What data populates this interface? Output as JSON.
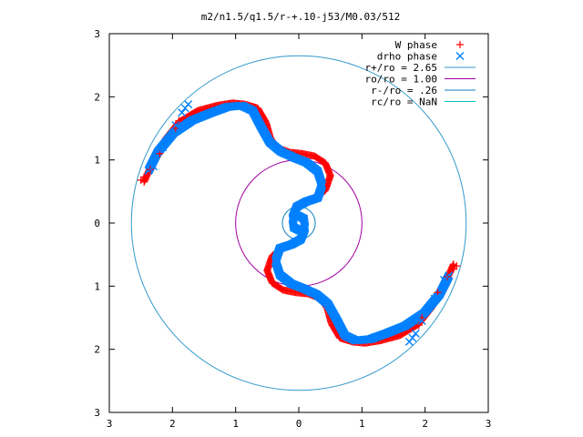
{
  "chart_data": {
    "type": "scatter",
    "title": "m2/n1.5/q1.5/r-+.10-j53/M0.03/512",
    "xlabel": "",
    "ylabel": "",
    "xlim": [
      -3,
      3
    ],
    "ylim": [
      -3,
      3
    ],
    "x_tick_labels": [
      "3",
      "2",
      "1",
      "0",
      "1",
      "2",
      "3"
    ],
    "y_tick_labels": [
      "3",
      "2",
      "1",
      "0",
      "1",
      "2",
      "3"
    ],
    "grid": false,
    "legend_position": "top-right",
    "series": [
      {
        "name": "W phase",
        "kind": "points",
        "marker": "plus",
        "color": "#ff0000"
      },
      {
        "name": "drho phase",
        "kind": "points",
        "marker": "cross",
        "color": "#0080ff"
      },
      {
        "name": "r+/ro = 2.65",
        "kind": "circle",
        "r": 2.65,
        "color": "#3399cc"
      },
      {
        "name": "ro/ro = 1.00",
        "kind": "circle",
        "r": 1.0,
        "color": "#a000a0"
      },
      {
        "name": "r-/ro = .26",
        "kind": "circle",
        "r": 0.26,
        "color": "#1080c0"
      },
      {
        "name": "rc/ro = NaN",
        "kind": "circle",
        "r": null,
        "color": "#00c0c0"
      }
    ],
    "arm_paths": {
      "W_phase": [
        [
          -2.45,
          0.65
        ],
        [
          -2.3,
          1.0
        ],
        [
          -2.1,
          1.35
        ],
        [
          -1.9,
          1.6
        ],
        [
          -1.6,
          1.78
        ],
        [
          -1.3,
          1.86
        ],
        [
          -1.05,
          1.9
        ],
        [
          -0.85,
          1.88
        ],
        [
          -0.65,
          1.82
        ],
        [
          -0.52,
          1.6
        ],
        [
          -0.45,
          1.35
        ],
        [
          -0.35,
          1.2
        ],
        [
          -0.15,
          1.12
        ],
        [
          0.05,
          1.1
        ],
        [
          0.25,
          1.06
        ],
        [
          0.42,
          0.95
        ],
        [
          0.5,
          0.75
        ],
        [
          0.42,
          0.52
        ],
        [
          0.3,
          0.42
        ],
        [
          0.15,
          0.36
        ],
        [
          0.04,
          0.3
        ]
      ],
      "drho_phase": [
        [
          -2.4,
          0.85
        ],
        [
          -2.25,
          1.15
        ],
        [
          -2.0,
          1.45
        ],
        [
          -1.7,
          1.65
        ],
        [
          -1.4,
          1.77
        ],
        [
          -1.15,
          1.86
        ],
        [
          -0.92,
          1.88
        ],
        [
          -0.75,
          1.8
        ],
        [
          -0.62,
          1.55
        ],
        [
          -0.48,
          1.3
        ],
        [
          -0.3,
          1.15
        ],
        [
          -0.1,
          1.06
        ],
        [
          0.1,
          0.98
        ],
        [
          0.28,
          0.84
        ],
        [
          0.35,
          0.62
        ],
        [
          0.28,
          0.42
        ],
        [
          0.1,
          0.36
        ],
        [
          -0.05,
          0.28
        ],
        [
          -0.12,
          0.1
        ],
        [
          -0.1,
          -0.05
        ],
        [
          0.0,
          -0.1
        ]
      ],
      "W_phase_outer_markers": [
        [
          -2.5,
          0.68
        ],
        [
          -2.45,
          0.73
        ],
        [
          -2.35,
          0.85
        ],
        [
          -2.2,
          1.1
        ],
        [
          -1.95,
          1.5
        ],
        [
          -1.9,
          1.62
        ]
      ],
      "drho_phase_outer_markers": [
        [
          -2.3,
          0.9
        ],
        [
          -2.15,
          1.2
        ],
        [
          -2.05,
          1.35
        ],
        [
          -1.95,
          1.55
        ],
        [
          -1.85,
          1.75
        ],
        [
          -1.8,
          1.82
        ],
        [
          -1.75,
          1.88
        ]
      ]
    }
  }
}
